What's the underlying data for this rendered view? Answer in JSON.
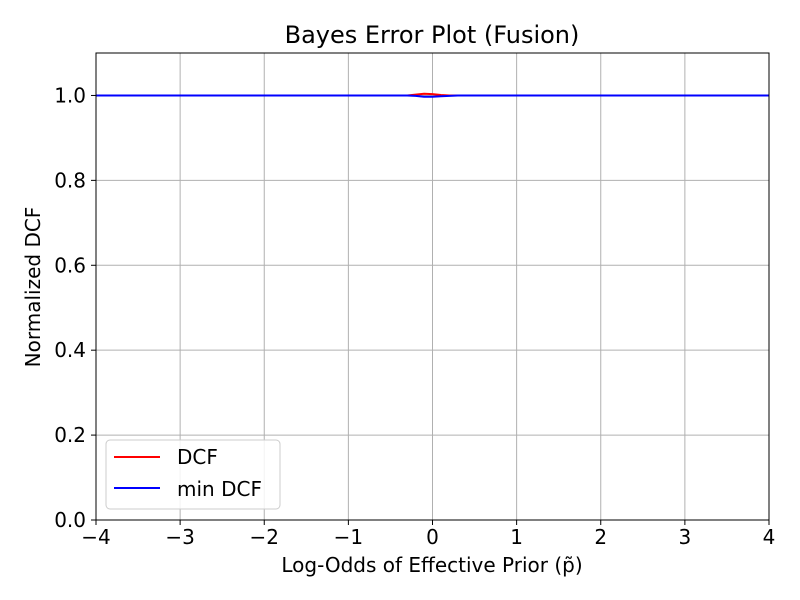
{
  "chart_data": {
    "type": "line",
    "title": "Bayes Error Plot (Fusion)",
    "xlabel": "Log-Odds of Effective Prior (p̃)",
    "ylabel": "Normalized DCF",
    "xlim": [
      -4,
      4
    ],
    "ylim": [
      0,
      1.1
    ],
    "xticks": [
      -4,
      -3,
      -2,
      -1,
      0,
      1,
      2,
      3,
      4
    ],
    "xtick_labels": [
      "−4",
      "−3",
      "−2",
      "−1",
      "0",
      "1",
      "2",
      "3",
      "4"
    ],
    "yticks": [
      0.0,
      0.2,
      0.4,
      0.6,
      0.8,
      1.0
    ],
    "ytick_labels": [
      "0.0",
      "0.2",
      "0.4",
      "0.6",
      "0.8",
      "1.0"
    ],
    "grid": true,
    "legend_position": "lower-left",
    "x": [
      -4,
      -3,
      -2,
      -1,
      -0.5,
      -0.3,
      -0.2,
      -0.1,
      0,
      0.1,
      0.2,
      0.3,
      0.5,
      1,
      2,
      3,
      4
    ],
    "series": [
      {
        "name": "DCF",
        "color": "#ff0000",
        "values": [
          1,
          1,
          1,
          1,
          1,
          1,
          1.002,
          1.004,
          1.003,
          1.001,
          1,
          1,
          1,
          1,
          1,
          1,
          1
        ]
      },
      {
        "name": "min DCF",
        "color": "#0000ff",
        "values": [
          1,
          1,
          1,
          1,
          1,
          1,
          0.999,
          0.997,
          0.997,
          0.998,
          0.999,
          1,
          1,
          1,
          1,
          1,
          1
        ]
      }
    ]
  }
}
